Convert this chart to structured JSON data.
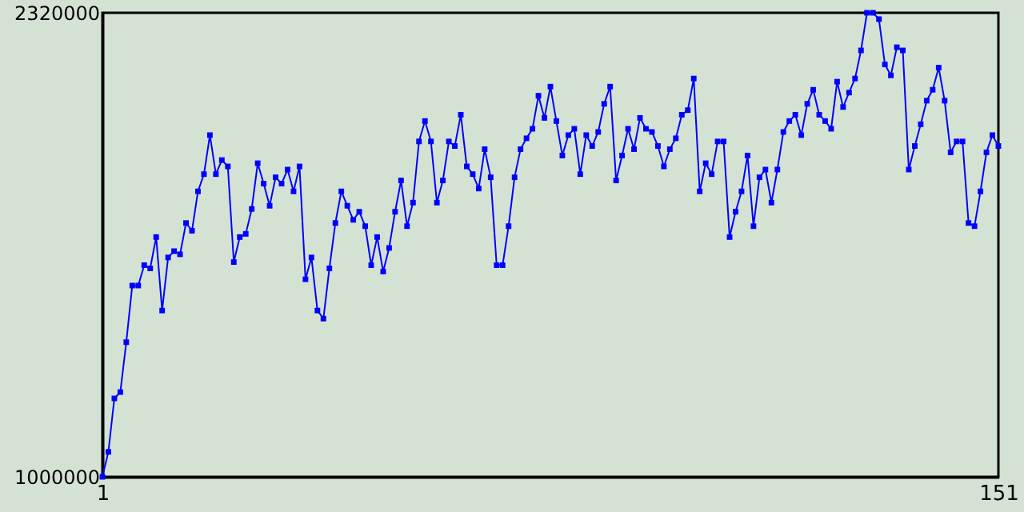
{
  "chart_data": {
    "type": "line",
    "x": [
      1,
      2,
      3,
      4,
      5,
      6,
      7,
      8,
      9,
      10,
      11,
      12,
      13,
      14,
      15,
      16,
      17,
      18,
      19,
      20,
      21,
      22,
      23,
      24,
      25,
      26,
      27,
      28,
      29,
      30,
      31,
      32,
      33,
      34,
      35,
      36,
      37,
      38,
      39,
      40,
      41,
      42,
      43,
      44,
      45,
      46,
      47,
      48,
      49,
      50,
      51,
      52,
      53,
      54,
      55,
      56,
      57,
      58,
      59,
      60,
      61,
      62,
      63,
      64,
      65,
      66,
      67,
      68,
      69,
      70,
      71,
      72,
      73,
      74,
      75,
      76,
      77,
      78,
      79,
      80,
      81,
      82,
      83,
      84,
      85,
      86,
      87,
      88,
      89,
      90,
      91,
      92,
      93,
      94,
      95,
      96,
      97,
      98,
      99,
      100,
      101,
      102,
      103,
      104,
      105,
      106,
      107,
      108,
      109,
      110,
      111,
      112,
      113,
      114,
      115,
      116,
      117,
      118,
      119,
      120,
      121,
      122,
      123,
      124,
      125,
      126,
      127,
      128,
      129,
      130,
      131,
      132,
      133,
      134,
      135,
      136,
      137,
      138,
      139,
      140,
      141,
      142,
      143,
      144,
      145,
      146,
      147,
      148,
      149,
      150,
      151
    ],
    "series": [
      {
        "color": "#0000ff",
        "values": [
          1000000,
          1071000,
          1223000,
          1241000,
          1383000,
          1544000,
          1544000,
          1602000,
          1593000,
          1682000,
          1473000,
          1624000,
          1642000,
          1633000,
          1722000,
          1700000,
          1812000,
          1861000,
          1972000,
          1861000,
          1901000,
          1883000,
          1611000,
          1682000,
          1691000,
          1762000,
          1892000,
          1834000,
          1771000,
          1852000,
          1834000,
          1874000,
          1812000,
          1883000,
          1562000,
          1624000,
          1473000,
          1450000,
          1593000,
          1722000,
          1812000,
          1771000,
          1731000,
          1754000,
          1713000,
          1602000,
          1682000,
          1584000,
          1651000,
          1754000,
          1843000,
          1713000,
          1780000,
          1954000,
          2012000,
          1954000,
          1780000,
          1843000,
          1954000,
          1941000,
          2030000,
          1883000,
          1861000,
          1820000,
          1932000,
          1852000,
          1602000,
          1602000,
          1713000,
          1852000,
          1932000,
          1963000,
          1990000,
          2084000,
          2021000,
          2110000,
          2012000,
          1914000,
          1972000,
          1990000,
          1861000,
          1972000,
          1941000,
          1981000,
          2061000,
          2110000,
          1843000,
          1914000,
          1990000,
          1932000,
          2021000,
          1990000,
          1981000,
          1941000,
          1883000,
          1932000,
          1963000,
          2030000,
          2043000,
          2133000,
          1812000,
          1892000,
          1861000,
          1954000,
          1954000,
          1682000,
          1754000,
          1812000,
          1914000,
          1713000,
          1852000,
          1874000,
          1780000,
          1874000,
          1981000,
          2012000,
          2030000,
          1972000,
          2061000,
          2101000,
          2030000,
          2012000,
          1990000,
          2124000,
          2052000,
          2093000,
          2133000,
          2213000,
          2320000,
          2320000,
          2302000,
          2173000,
          2142000,
          2222000,
          2213000,
          1874000,
          1941000,
          2003000,
          2070000,
          2101000,
          2164000,
          2070000,
          1923000,
          1954000,
          1954000,
          1722000,
          1713000,
          1812000,
          1923000,
          1972000,
          1941000
        ]
      }
    ],
    "xlim": [
      1,
      151
    ],
    "xticks": [
      1,
      151
    ],
    "ylim": [
      1000000,
      2320000
    ],
    "yticks": [
      1000000,
      2320000
    ],
    "marker": "square",
    "grid": false
  }
}
